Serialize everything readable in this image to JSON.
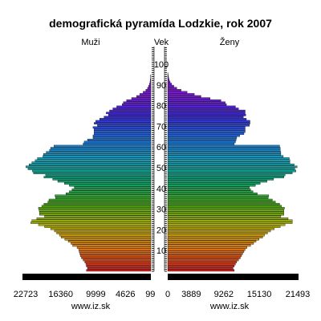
{
  "chart_data": {
    "type": "bar",
    "orientation": "horizontal-population-pyramid",
    "title": "demografická pyramída Lodzkie, rok 2007",
    "left_label": "Muži",
    "center_label": "Vek",
    "right_label": "Ženy",
    "source_left": "www.iz.sk",
    "source_right": "www.iz.sk",
    "left_ticks": [
      "22723",
      "16360",
      "9999",
      "4626",
      "99"
    ],
    "left_tick_values": [
      22723,
      16360,
      9999,
      4626,
      99
    ],
    "right_ticks": [
      "0",
      "3889",
      "9262",
      "15130",
      "21493"
    ],
    "right_tick_values": [
      0,
      3889,
      9262,
      15130,
      21493
    ],
    "age_ticks": [
      10,
      20,
      30,
      40,
      50,
      60,
      70,
      80,
      90,
      100
    ],
    "age_range": [
      0,
      100
    ],
    "xlim_left": [
      0,
      22723
    ],
    "xlim_right": [
      0,
      21493
    ],
    "ages": [
      0,
      1,
      2,
      3,
      4,
      5,
      6,
      7,
      8,
      9,
      10,
      11,
      12,
      13,
      14,
      15,
      15,
      16,
      17,
      18,
      19,
      20,
      21,
      22,
      23,
      24,
      25,
      26,
      27,
      28,
      29,
      30,
      31,
      32,
      33,
      34,
      35,
      36,
      37,
      38,
      39,
      40,
      41,
      42,
      43,
      44,
      45,
      46,
      47,
      48,
      49,
      50,
      51,
      52,
      53,
      54,
      55,
      56,
      57,
      58,
      59,
      60,
      61,
      62,
      63,
      64,
      65,
      66,
      67,
      68,
      69,
      70,
      71,
      72,
      73,
      74,
      75,
      76,
      77,
      78,
      79,
      80,
      81,
      82,
      83,
      84,
      85,
      86,
      87,
      88,
      89,
      90,
      91,
      92,
      93,
      94,
      95,
      96,
      97,
      98,
      99,
      100
    ],
    "male": [
      11700,
      11500,
      11700,
      11800,
      12000,
      12300,
      12600,
      12800,
      12900,
      13000,
      13100,
      13400,
      14200,
      14500,
      15000,
      15600,
      15600,
      16300,
      16600,
      17100,
      17500,
      18200,
      19300,
      20400,
      21800,
      21600,
      20700,
      19300,
      20200,
      20200,
      20300,
      20400,
      19800,
      19400,
      18700,
      18500,
      17300,
      17400,
      15400,
      14800,
      14300,
      13900,
      14800,
      15700,
      16900,
      17800,
      19400,
      19100,
      21300,
      21500,
      22300,
      22700,
      22100,
      21600,
      21000,
      20600,
      19600,
      19500,
      19000,
      18400,
      18200,
      17600,
      12300,
      12100,
      11500,
      10500,
      10500,
      10300,
      10300,
      10300,
      10500,
      9700,
      10300,
      10000,
      9300,
      8500,
      7700,
      8100,
      7500,
      6900,
      6200,
      5200,
      5000,
      4400,
      3500,
      2600,
      2000,
      1400,
      900,
      600,
      400,
      250,
      150,
      100,
      60,
      40,
      20,
      10,
      5,
      3,
      2,
      1
    ],
    "female": [
      11000,
      10800,
      11000,
      11200,
      11400,
      11700,
      12000,
      12200,
      12400,
      12600,
      12800,
      13100,
      13700,
      14200,
      14600,
      15100,
      15100,
      15700,
      16000,
      16500,
      17000,
      17600,
      18600,
      19400,
      20600,
      20600,
      19900,
      18700,
      19200,
      19200,
      19200,
      19300,
      18800,
      18500,
      17800,
      17300,
      16600,
      16700,
      14800,
      14100,
      13700,
      13500,
      14500,
      15300,
      16400,
      17500,
      19200,
      19400,
      20600,
      21200,
      21000,
      21400,
      20900,
      20200,
      20200,
      20100,
      19100,
      18700,
      18700,
      18600,
      18600,
      18500,
      11000,
      11200,
      11300,
      11400,
      11900,
      12600,
      12800,
      12800,
      12800,
      13500,
      13600,
      13600,
      13000,
      12500,
      12900,
      12800,
      12800,
      11700,
      11200,
      9700,
      9500,
      8800,
      7000,
      5500,
      4400,
      3200,
      2200,
      1500,
      1000,
      650,
      400,
      250,
      150,
      90,
      50,
      25,
      12,
      6,
      3,
      1
    ],
    "colors": {
      "spectrum": [
        "#cc1f1f",
        "#e07a18",
        "#b7b20c",
        "#4aa618",
        "#10a06a",
        "#1aa0b8",
        "#2070d8",
        "#3a2ad8",
        "#7a1ad0"
      ],
      "background": "#ffffff",
      "bar_outline": "#000000",
      "axis_scale": "#000000"
    }
  }
}
